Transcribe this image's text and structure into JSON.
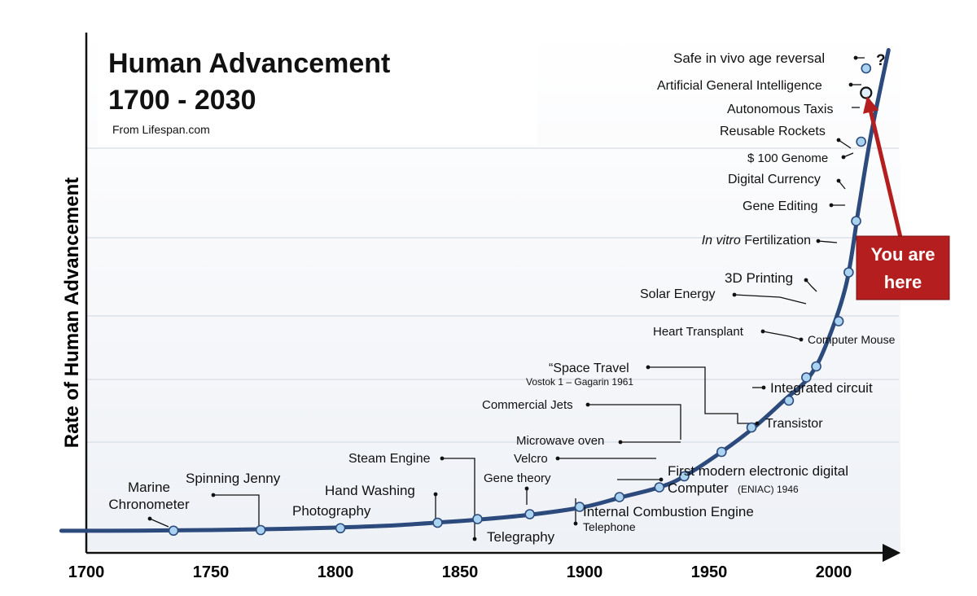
{
  "chart_data": {
    "type": "line",
    "title": "Human Advancement",
    "subtitle": "1700 - 2030",
    "source": "From Lifespan.com",
    "xlabel": "",
    "ylabel": "Rate of Human Advancement",
    "xlim": [
      1700,
      2030
    ],
    "x_ticks": [
      "1700",
      "1750",
      "1800",
      "1850",
      "1900",
      "1950",
      "2000"
    ],
    "grid": true,
    "curve": {
      "x": [
        1690,
        1720,
        1750,
        1780,
        1800,
        1820,
        1840,
        1860,
        1880,
        1900,
        1915,
        1930,
        1940,
        1955,
        1968,
        1980,
        1990,
        1997,
        2005,
        2010,
        2015,
        2022
      ],
      "y": [
        1.4,
        1.5,
        2.0,
        3.0,
        4.0,
        5.5,
        8.0,
        11.0,
        15.0,
        21.0,
        29.0,
        37.0,
        46.0,
        66.0,
        86.0,
        108.0,
        127.0,
        154.0,
        203.0,
        265.0,
        326.0,
        395.0
      ]
    },
    "milestones": [
      {
        "id": "marine-chronometer",
        "label": "Marine",
        "label2": "Chronometer",
        "year": 1735,
        "value": 1.5
      },
      {
        "id": "spinning-jenny",
        "label": "Spinning Jenny",
        "year": 1770,
        "value": 2.0
      },
      {
        "id": "photography",
        "label": "Photography",
        "year": 1802,
        "value": 3.5
      },
      {
        "id": "hand-washing",
        "label": "Hand Washing",
        "year": 1841,
        "value": 8.0
      },
      {
        "id": "steam-engine",
        "label": "Steam Engine",
        "year": 1857,
        "value": 11.0
      },
      {
        "id": "telegraphy",
        "label": "Telegraphy",
        "year": 1857,
        "value": 11.0
      },
      {
        "id": "gene-theory",
        "label": "Gene theory",
        "year": 1878,
        "value": 15.0
      },
      {
        "id": "internal-combustion",
        "label": "Internal Combustion Engine",
        "label2": "Telephone",
        "year": 1898,
        "value": 21.0
      },
      {
        "id": "first-computer",
        "label": "First modern electronic digital",
        "label2": "Computer",
        "label3": "(ENIAC) 1946",
        "year": 1914,
        "value": 29.0
      },
      {
        "id": "velcro",
        "label": "Velcro",
        "year": 1930,
        "value": 37.0
      },
      {
        "id": "microwave-oven",
        "label": "Microwave oven",
        "year": 1940,
        "value": 46.0
      },
      {
        "id": "commercial-jets",
        "label": "Commercial Jets",
        "year": 1940,
        "value": 46.0
      },
      {
        "id": "transistor",
        "label": "Transistor",
        "year": 1955,
        "value": 66.0
      },
      {
        "id": "space-travel",
        "label": "“Space Travel",
        "label2": "Vostok 1 – Gagarin 1961",
        "year": 1955,
        "value": 66.0
      },
      {
        "id": "integrated-circuit",
        "label": "Integrated circuit",
        "year": 1967,
        "value": 86.0
      },
      {
        "id": "heart-transplant",
        "label": "Heart Transplant",
        "year": 1982,
        "value": 108.0
      },
      {
        "id": "computer-mouse",
        "label": "Computer Mouse",
        "year": 1982,
        "value": 108.0
      },
      {
        "id": "solar-energy",
        "label": "Solar Energy",
        "year": 1989,
        "value": 127.0
      },
      {
        "id": "3d-printing",
        "label": "3D Printing",
        "year": 1993,
        "value": 136.0
      },
      {
        "id": "ivf",
        "label": "In vitro",
        "label2": "Fertilization",
        "year": 2002,
        "value": 173.0
      },
      {
        "id": "gene-editing",
        "label": "Gene Editing",
        "year": 2006,
        "value": 213.0
      },
      {
        "id": "digital-currency",
        "label": "Digital Currency",
        "year": 2006,
        "value": 213.0
      },
      {
        "id": "100-genome",
        "label": "$ 100 Genome",
        "year": 2009,
        "value": 255.0
      },
      {
        "id": "reusable-rockets",
        "label": "Reusable Rockets",
        "year": 2009,
        "value": 255.0
      },
      {
        "id": "autonomous-taxis",
        "label": "Autonomous Taxis",
        "year": 2011,
        "value": 320.0
      },
      {
        "id": "agi",
        "label": "Artificial General Intelligence",
        "year": 2013,
        "value": 360.0
      },
      {
        "id": "age-reversal",
        "label": "Safe in vivo age reversal",
        "label2": "?",
        "year": 2013,
        "value": 380.0
      }
    ],
    "annotation": {
      "line1": "You are",
      "line2": "here",
      "color": "#b41e1e"
    }
  },
  "colors": {
    "curve": "#2c4a7c",
    "marker_fill": "#a9d3f0",
    "grid": "#d0d6e0",
    "callout": "#b41e1e"
  }
}
